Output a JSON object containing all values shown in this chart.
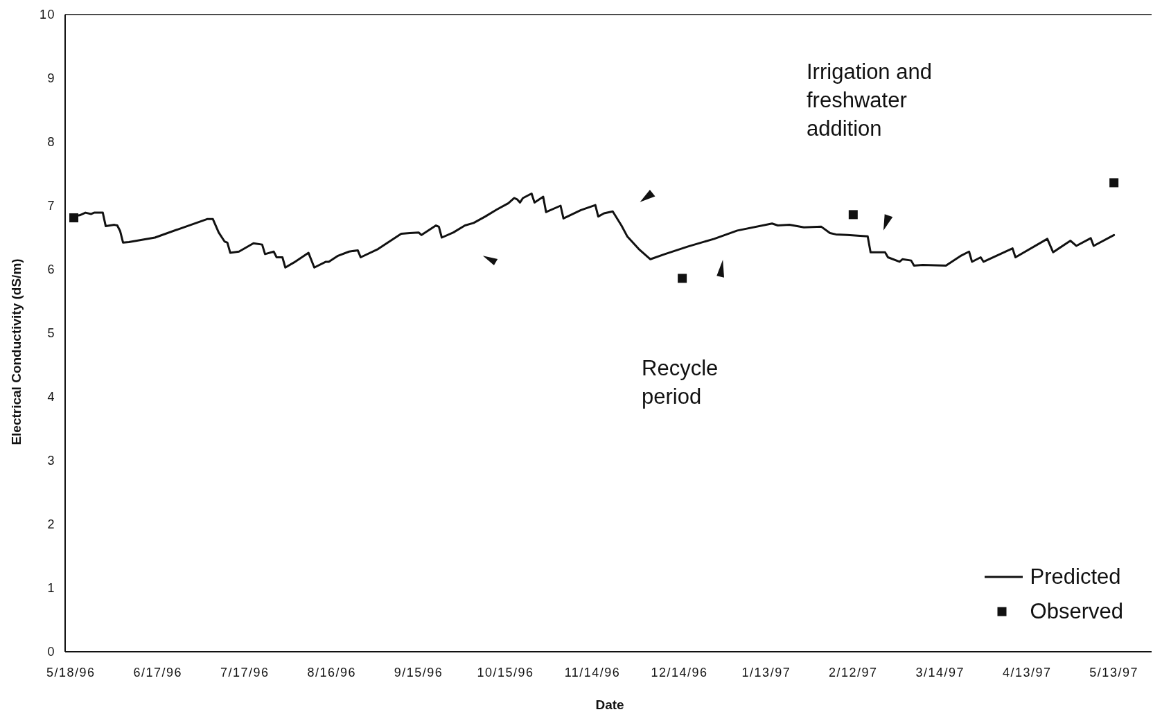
{
  "chart_data": {
    "type": "line",
    "xlabel": "Date",
    "ylabel": "Electrical Conductivity (dS/m)",
    "annotations": [
      "Irrigation and freshwater addition",
      "Recycle period"
    ],
    "xlim": [
      "1996-05-16",
      "1997-05-26"
    ],
    "xticks": [
      {
        "value": "1996-05-18",
        "label": "5/18/96"
      },
      {
        "value": "1996-06-17",
        "label": "6/17/96"
      },
      {
        "value": "1996-07-17",
        "label": "7/17/96"
      },
      {
        "value": "1996-08-16",
        "label": "8/16/96"
      },
      {
        "value": "1996-09-15",
        "label": "9/15/96"
      },
      {
        "value": "1996-10-15",
        "label": "10/15/96"
      },
      {
        "value": "1996-11-14",
        "label": "11/14/96"
      },
      {
        "value": "1996-12-14",
        "label": "12/14/96"
      },
      {
        "value": "1997-01-13",
        "label": "1/13/97"
      },
      {
        "value": "1997-02-12",
        "label": "2/12/97"
      },
      {
        "value": "1997-03-14",
        "label": "3/14/97"
      },
      {
        "value": "1997-04-13",
        "label": "4/13/97"
      },
      {
        "value": "1997-05-13",
        "label": "5/13/97"
      }
    ],
    "ylim": [
      0,
      10
    ],
    "yticks": [
      0,
      1,
      2,
      3,
      4,
      5,
      6,
      7,
      8,
      9,
      10
    ],
    "legend": "bottom right",
    "series": [
      {
        "name": "Predicted",
        "color": "#111111",
        "marker": "none",
        "line_style": "solid",
        "x": [
          "1996-05-18",
          "1996-05-21",
          "1996-05-23",
          "1996-05-25",
          "1996-05-26",
          "1996-05-29",
          "1996-05-30",
          "1996-06-02",
          "1996-06-03",
          "1996-06-04",
          "1996-06-05",
          "1996-06-07",
          "1996-06-16",
          "1996-06-24",
          "1996-07-04",
          "1996-07-06",
          "1996-07-08",
          "1996-07-10",
          "1996-07-11",
          "1996-07-12",
          "1996-07-15",
          "1996-07-20",
          "1996-07-23",
          "1996-07-24",
          "1996-07-27",
          "1996-07-28",
          "1996-07-30",
          "1996-07-31",
          "1996-08-03",
          "1996-08-08",
          "1996-08-10",
          "1996-08-14",
          "1996-08-15",
          "1996-08-18",
          "1996-08-22",
          "1996-08-25",
          "1996-08-26",
          "1996-09-01",
          "1996-09-09",
          "1996-09-12",
          "1996-09-15",
          "1996-09-16",
          "1996-09-18",
          "1996-09-21",
          "1996-09-22",
          "1996-09-23",
          "1996-09-27",
          "1996-10-01",
          "1996-10-04",
          "1996-10-08",
          "1996-10-12",
          "1996-10-16",
          "1996-10-18",
          "1996-10-19",
          "1996-10-20",
          "1996-10-21",
          "1996-10-24",
          "1996-10-25",
          "1996-10-28",
          "1996-10-29",
          "1996-11-03",
          "1996-11-04",
          "1996-11-10",
          "1996-11-15",
          "1996-11-16",
          "1996-11-18",
          "1996-11-21",
          "1996-11-24",
          "1996-11-26",
          "1996-11-30",
          "1996-12-04",
          "1996-12-09",
          "1996-12-17",
          "1996-12-26",
          "1997-01-03",
          "1997-01-15",
          "1997-01-17",
          "1997-01-21",
          "1997-01-26",
          "1997-02-01",
          "1997-02-04",
          "1997-02-06",
          "1997-02-10",
          "1997-02-17",
          "1997-02-18",
          "1997-02-23",
          "1997-02-24",
          "1997-02-28",
          "1997-03-01",
          "1997-03-04",
          "1997-03-05",
          "1997-03-08",
          "1997-03-16",
          "1997-03-21",
          "1997-03-24",
          "1997-03-25",
          "1997-03-28",
          "1997-03-29",
          "1997-04-08",
          "1997-04-09",
          "1997-04-20",
          "1997-04-22",
          "1997-04-28",
          "1997-04-30",
          "1997-05-05",
          "1997-05-06",
          "1997-05-13"
        ],
        "values": [
          6.83,
          6.85,
          6.89,
          6.87,
          6.89,
          6.89,
          6.68,
          6.7,
          6.69,
          6.6,
          6.42,
          6.43,
          6.5,
          6.63,
          6.79,
          6.79,
          6.58,
          6.44,
          6.42,
          6.26,
          6.28,
          6.41,
          6.39,
          6.24,
          6.28,
          6.19,
          6.19,
          6.03,
          6.11,
          6.26,
          6.03,
          6.12,
          6.12,
          6.21,
          6.28,
          6.3,
          6.19,
          6.32,
          6.56,
          6.57,
          6.58,
          6.54,
          6.6,
          6.69,
          6.67,
          6.5,
          6.58,
          6.69,
          6.73,
          6.83,
          6.94,
          7.04,
          7.12,
          7.1,
          7.05,
          7.12,
          7.19,
          7.05,
          7.14,
          6.9,
          7.0,
          6.8,
          6.93,
          7.01,
          6.83,
          6.88,
          6.91,
          6.69,
          6.52,
          6.32,
          6.16,
          6.24,
          6.36,
          6.48,
          6.61,
          6.72,
          6.69,
          6.7,
          6.66,
          6.67,
          6.57,
          6.55,
          6.54,
          6.52,
          6.27,
          6.27,
          6.19,
          6.12,
          6.16,
          6.14,
          6.06,
          6.07,
          6.06,
          6.21,
          6.28,
          6.12,
          6.19,
          6.12,
          6.33,
          6.19,
          6.48,
          6.27,
          6.45,
          6.37,
          6.49,
          6.37,
          6.54
        ]
      },
      {
        "name": "Observed",
        "type": "scatter",
        "color": "#111111",
        "marker": "square",
        "x": [
          "1996-05-19",
          "1996-12-15",
          "1997-02-12",
          "1997-05-13"
        ],
        "values": [
          6.81,
          5.86,
          6.86,
          7.36
        ]
      }
    ]
  }
}
